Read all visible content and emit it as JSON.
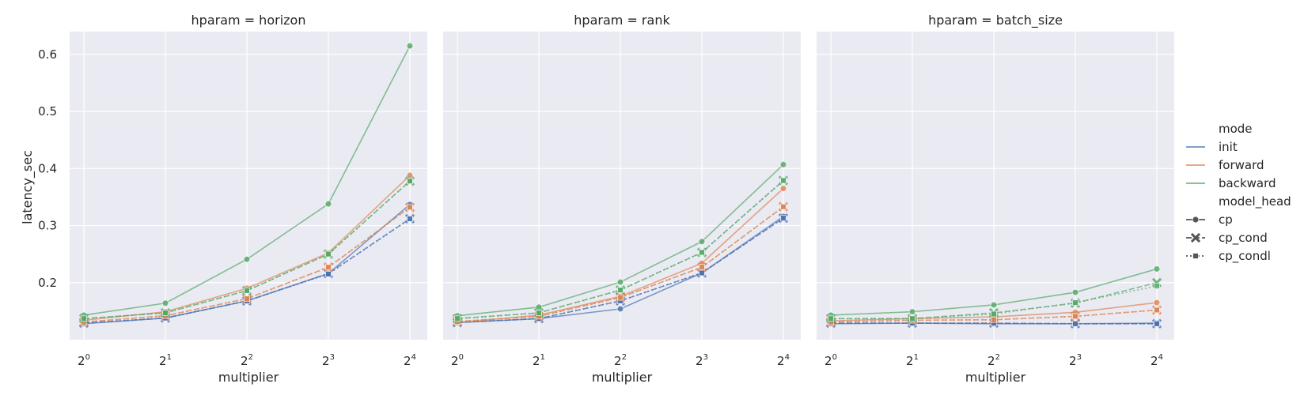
{
  "chart_data": {
    "type": "line",
    "ylabel": "latency_sec",
    "xlabel": "multiplier",
    "x": [
      1,
      2,
      4,
      8,
      16
    ],
    "x_tick_labels": [
      {
        "base": "2",
        "exp": "0"
      },
      {
        "base": "2",
        "exp": "1"
      },
      {
        "base": "2",
        "exp": "2"
      },
      {
        "base": "2",
        "exp": "3"
      },
      {
        "base": "2",
        "exp": "4"
      }
    ],
    "x_scale": "log2",
    "ylim": [
      0.1,
      0.64
    ],
    "y_ticks": [
      "0.2",
      "0.3",
      "0.4",
      "0.5",
      "0.6"
    ],
    "y_tick_values": [
      0.2,
      0.3,
      0.4,
      0.5,
      0.6
    ],
    "grid": true,
    "legend_placement": "right",
    "legend": {
      "hue_title": "mode",
      "hue": [
        {
          "name": "init",
          "color": "#4c72b0"
        },
        {
          "name": "forward",
          "color": "#dd8452"
        },
        {
          "name": "backward",
          "color": "#55a868"
        }
      ],
      "style_title": "model_head",
      "styles": [
        {
          "name": "cp",
          "dash": "solid",
          "marker": "circle"
        },
        {
          "name": "cp_cond",
          "dash": "dashed",
          "marker": "x"
        },
        {
          "name": "cp_condl",
          "dash": "dotted",
          "marker": "square"
        }
      ]
    },
    "panels": [
      {
        "title": "hparam = horizon",
        "series": [
          {
            "mode": "init",
            "head": "cp",
            "values": [
              0.128,
              0.138,
              0.168,
              0.216,
              0.337
            ]
          },
          {
            "mode": "init",
            "head": "cp_cond",
            "values": [
              0.129,
              0.138,
              0.168,
              0.216,
              0.312
            ]
          },
          {
            "mode": "init",
            "head": "cp_condl",
            "values": [
              0.129,
              0.138,
              0.168,
              0.215,
              0.312
            ]
          },
          {
            "mode": "forward",
            "head": "cp",
            "values": [
              0.134,
              0.149,
              0.19,
              0.252,
              0.388
            ]
          },
          {
            "mode": "forward",
            "head": "cp_cond",
            "values": [
              0.131,
              0.142,
              0.172,
              0.227,
              0.332
            ]
          },
          {
            "mode": "forward",
            "head": "cp_condl",
            "values": [
              0.131,
              0.142,
              0.172,
              0.227,
              0.332
            ]
          },
          {
            "mode": "backward",
            "head": "cp",
            "values": [
              0.143,
              0.164,
              0.241,
              0.338,
              0.615
            ]
          },
          {
            "mode": "backward",
            "head": "cp_cond",
            "values": [
              0.137,
              0.147,
              0.186,
              0.25,
              0.378
            ]
          },
          {
            "mode": "backward",
            "head": "cp_condl",
            "values": [
              0.137,
              0.147,
              0.186,
              0.25,
              0.378
            ]
          }
        ]
      },
      {
        "title": "hparam = rank",
        "series": [
          {
            "mode": "init",
            "head": "cp",
            "values": [
              0.13,
              0.137,
              0.154,
              0.217,
              0.316
            ]
          },
          {
            "mode": "init",
            "head": "cp_cond",
            "values": [
              0.13,
              0.137,
              0.168,
              0.217,
              0.313
            ]
          },
          {
            "mode": "init",
            "head": "cp_condl",
            "values": [
              0.13,
              0.137,
              0.168,
              0.217,
              0.313
            ]
          },
          {
            "mode": "forward",
            "head": "cp",
            "values": [
              0.13,
              0.143,
              0.176,
              0.234,
              0.365
            ]
          },
          {
            "mode": "forward",
            "head": "cp_cond",
            "values": [
              0.132,
              0.141,
              0.174,
              0.227,
              0.333
            ]
          },
          {
            "mode": "forward",
            "head": "cp_condl",
            "values": [
              0.132,
              0.141,
              0.174,
              0.227,
              0.333
            ]
          },
          {
            "mode": "backward",
            "head": "cp",
            "values": [
              0.142,
              0.157,
              0.201,
              0.272,
              0.407
            ]
          },
          {
            "mode": "backward",
            "head": "cp_cond",
            "values": [
              0.137,
              0.147,
              0.187,
              0.253,
              0.379
            ]
          },
          {
            "mode": "backward",
            "head": "cp_condl",
            "values": [
              0.137,
              0.147,
              0.187,
              0.253,
              0.379
            ]
          }
        ]
      },
      {
        "title": "hparam = batch_size",
        "series": [
          {
            "mode": "init",
            "head": "cp",
            "values": [
              0.128,
              0.129,
              0.128,
              0.128,
              0.129
            ]
          },
          {
            "mode": "init",
            "head": "cp_cond",
            "values": [
              0.129,
              0.129,
              0.129,
              0.128,
              0.128
            ]
          },
          {
            "mode": "init",
            "head": "cp_condl",
            "values": [
              0.129,
              0.129,
              0.129,
              0.128,
              0.128
            ]
          },
          {
            "mode": "forward",
            "head": "cp",
            "values": [
              0.133,
              0.137,
              0.14,
              0.148,
              0.165
            ]
          },
          {
            "mode": "forward",
            "head": "cp_cond",
            "values": [
              0.131,
              0.134,
              0.135,
              0.141,
              0.152
            ]
          },
          {
            "mode": "forward",
            "head": "cp_condl",
            "values": [
              0.131,
              0.134,
              0.135,
              0.141,
              0.152
            ]
          },
          {
            "mode": "backward",
            "head": "cp",
            "values": [
              0.143,
              0.149,
              0.161,
              0.183,
              0.224
            ]
          },
          {
            "mode": "backward",
            "head": "cp_cond",
            "values": [
              0.137,
              0.137,
              0.147,
              0.164,
              0.2
            ]
          },
          {
            "mode": "backward",
            "head": "cp_condl",
            "values": [
              0.137,
              0.137,
              0.145,
              0.165,
              0.194
            ]
          }
        ]
      }
    ]
  }
}
